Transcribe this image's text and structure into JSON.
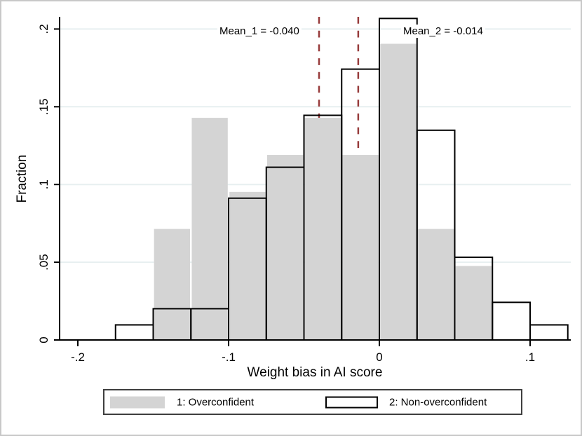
{
  "chart_data": {
    "type": "histogram",
    "title": "",
    "xlabel": "Weight bias in AI score",
    "ylabel": "Fraction",
    "grid": true,
    "legend_position": "bottom",
    "xlim": [
      -0.212,
      0.127
    ],
    "ylim": [
      0,
      0.208
    ],
    "x_ticks": [
      -0.2,
      -0.1,
      0,
      0.1
    ],
    "x_tick_labels": [
      "-.2",
      "-.1",
      "0",
      ".1"
    ],
    "y_ticks": [
      0,
      0.05,
      0.1,
      0.15,
      0.2
    ],
    "y_tick_labels": [
      "0",
      ".05",
      ".1",
      ".15",
      ".2"
    ],
    "bin_start": -0.175,
    "bin_width": 0.025,
    "bin_edges": [
      -0.175,
      -0.15,
      -0.125,
      -0.1,
      -0.075,
      -0.05,
      -0.025,
      0,
      0.025,
      0.05,
      0.075,
      0.1,
      0.125
    ],
    "series": [
      {
        "name": "1: Overconfident",
        "style": "filled",
        "fill_color": "#d4d4d4",
        "values": [
          0,
          0.0714,
          0.1429,
          0.0952,
          0.119,
          0.1429,
          0.119,
          0.1905,
          0.0714,
          0.0476,
          0,
          0
        ]
      },
      {
        "name": "2: Non-overconfident",
        "style": "outline",
        "outline_color": "#000000",
        "values": [
          0.0097,
          0.0201,
          0.0201,
          0.0912,
          0.1111,
          0.1445,
          0.1742,
          0.2068,
          0.1349,
          0.0532,
          0.0242,
          0.0097
        ]
      }
    ],
    "mean_lines": [
      {
        "x": -0.04,
        "label": "Mean_1 = -0.040",
        "series": 0
      },
      {
        "x": -0.014,
        "label": "Mean_2 = -0.014",
        "series": 1
      }
    ]
  },
  "colors": {
    "bar_fill": "#d4d4d4",
    "bar_outline": "#000000",
    "mean_line": "#973b3b",
    "gridline": "#e7eff0",
    "axis": "#000000",
    "legend_border": "#3f3f3f",
    "figure_border": "#c8c8c8"
  }
}
